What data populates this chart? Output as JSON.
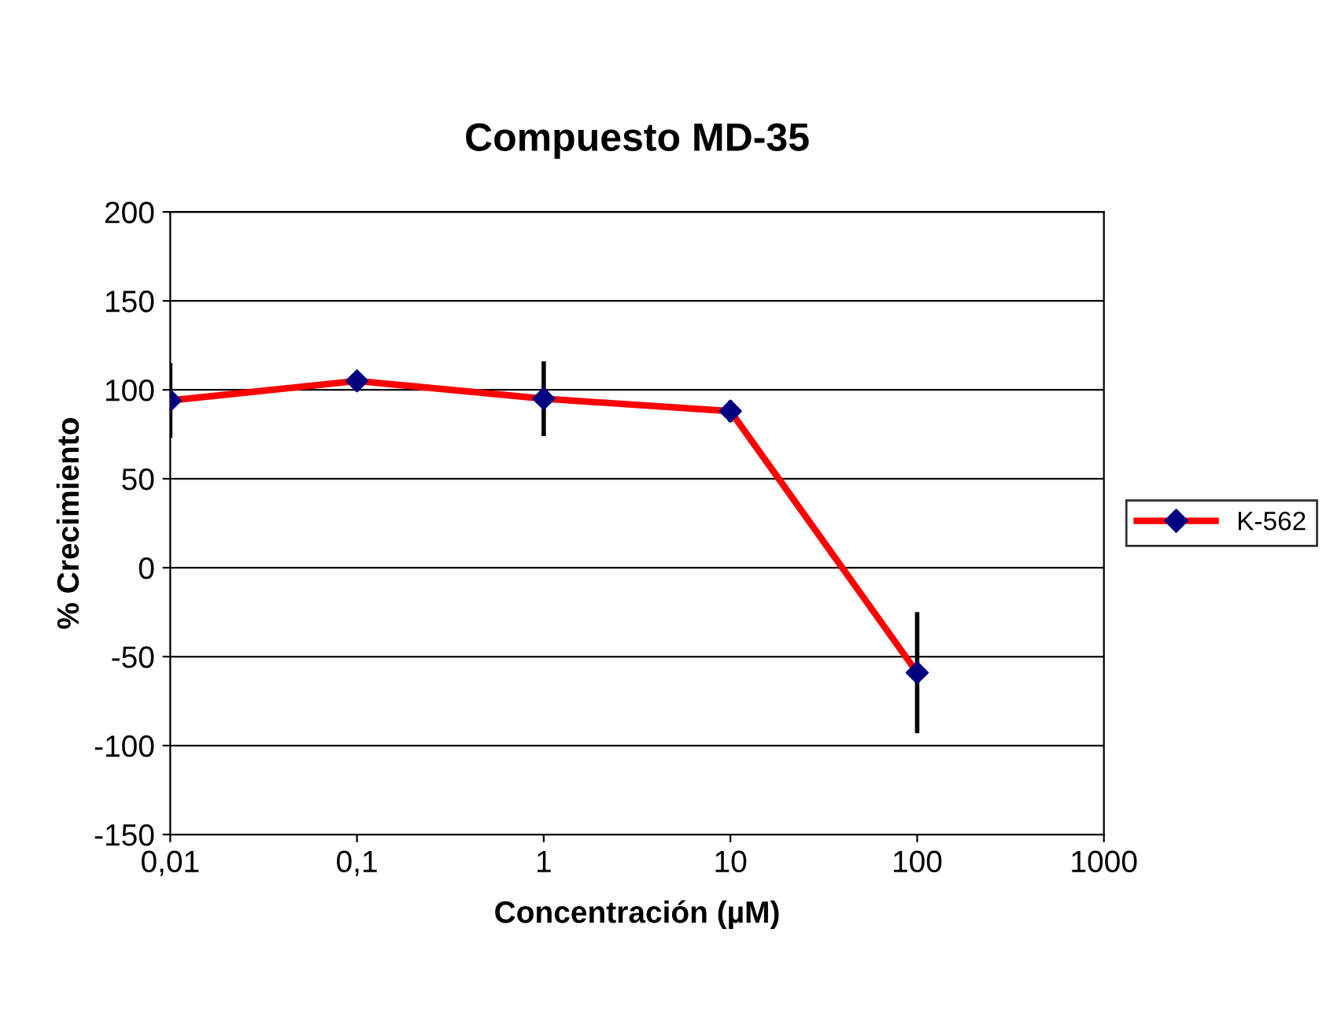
{
  "chart_data": {
    "type": "line",
    "title": "Compuesto MD-35",
    "xlabel": "Concentración (µM)",
    "ylabel": "% Crecimiento",
    "x": [
      0.01,
      0.1,
      1,
      10,
      100
    ],
    "series": [
      {
        "name": "K-562",
        "color": "#ff0000",
        "colors": [
          "#000080",
          "#000080",
          "#000080",
          "#000080",
          "#000080"
        ],
        "values": [
          94,
          105,
          95,
          88,
          -59
        ],
        "errors": [
          21,
          null,
          21,
          6,
          34
        ]
      }
    ],
    "log": "x",
    "xlim": [
      0.01,
      1000
    ],
    "xticks": [
      {
        "value": 0.01,
        "label": "0,01"
      },
      {
        "value": 0.1,
        "label": "0,1"
      },
      1,
      10,
      100,
      1000
    ],
    "ylim": [
      -150,
      200
    ],
    "yticks": [
      -150,
      -100,
      -50,
      0,
      50,
      100,
      150,
      200
    ],
    "grid": "y",
    "legend": "right",
    "marker": "diamond",
    "line_style": "solid"
  }
}
